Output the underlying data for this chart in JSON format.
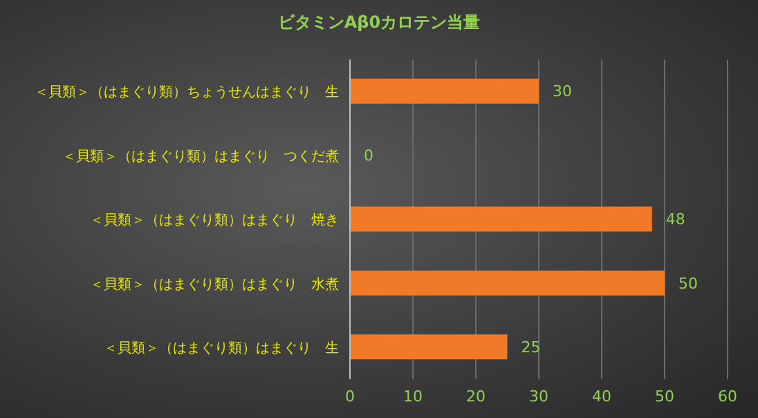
{
  "chart_data": {
    "type": "bar",
    "orientation": "horizontal",
    "title": "ビタミンAβ0カロテン当量",
    "categories": [
      "＜貝類＞（はまぐり類）ちょうせんはまぐり　生",
      "＜貝類＞（はまぐり類）はまぐり　つくだ煮",
      "＜貝類＞（はまぐり類）はまぐり　焼き",
      "＜貝類＞（はまぐり類）はまぐり　水煮",
      "＜貝類＞（はまぐり類）はまぐり　生"
    ],
    "values": [
      30,
      0,
      48,
      50,
      25
    ],
    "color": "#f07a28",
    "data_labels": true,
    "xlim": [
      0,
      60
    ],
    "xticks": [
      0,
      10,
      20,
      30,
      40,
      50,
      60
    ],
    "grid": "x"
  }
}
